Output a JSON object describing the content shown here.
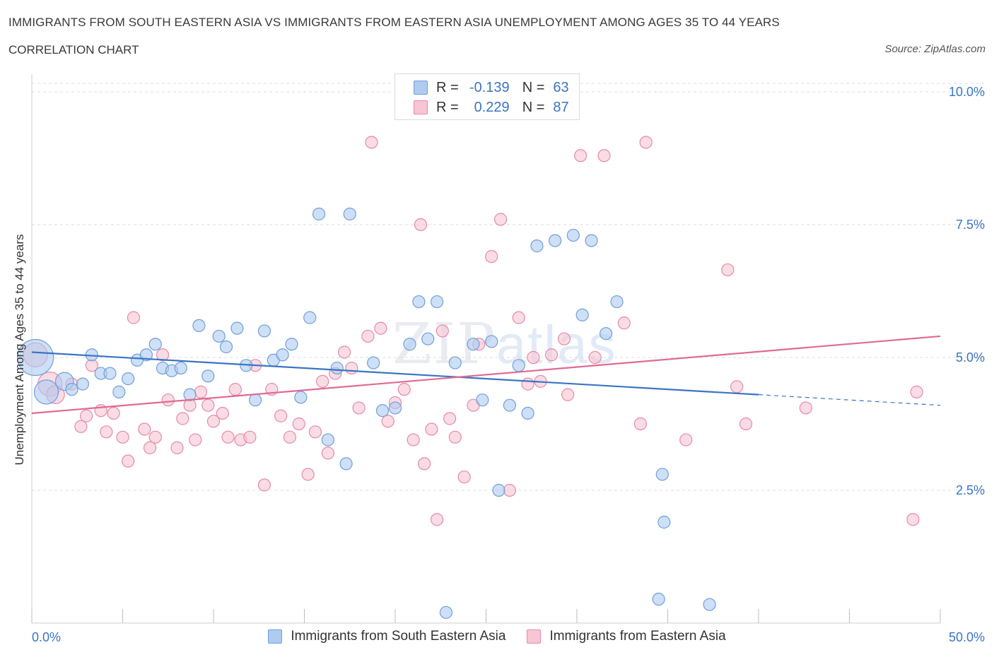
{
  "header": {
    "title": "IMMIGRANTS FROM SOUTH EASTERN ASIA VS IMMIGRANTS FROM EASTERN ASIA UNEMPLOYMENT AMONG AGES 35 TO 44 YEARS",
    "subtitle": "CORRELATION CHART",
    "source": "Source: ZipAtlas.com"
  },
  "watermark": {
    "zip": "ZIP",
    "atlas": "atlas"
  },
  "legend_stats": [
    {
      "r_label": "R =",
      "r_value": "-0.139",
      "n_label": "N =",
      "n_value": "63"
    },
    {
      "r_label": "R =",
      "r_value": "0.229",
      "n_label": "N =",
      "n_value": "87"
    }
  ],
  "colors": {
    "blue_fill": "#aecbf0",
    "blue_stroke": "#6f9fdc",
    "blue_line": "#3a75c4",
    "pink_fill": "#f7c5d3",
    "pink_stroke": "#e889a8",
    "pink_line": "#e06a93",
    "grid": "#dcdcdc",
    "axis_text": "#3a75c4"
  },
  "chart_data": {
    "type": "scatter",
    "title": "IMMIGRANTS FROM SOUTH EASTERN ASIA VS IMMIGRANTS FROM EASTERN ASIA UNEMPLOYMENT AMONG AGES 35 TO 44 YEARS",
    "xlabel": "",
    "ylabel": "Unemployment Among Ages 35 to 44 years",
    "xlim": [
      0,
      50
    ],
    "ylim": [
      0,
      10.2
    ],
    "x_tick_labels": [
      "0.0%",
      "50.0%"
    ],
    "y_ticks": [
      2.5,
      5.0,
      7.5,
      10.0
    ],
    "y_tick_labels": [
      "2.5%",
      "5.0%",
      "7.5%",
      "10.0%"
    ],
    "grid": true,
    "legend_placement": "bottom-center",
    "series": [
      {
        "name": "Immigrants from South Eastern Asia",
        "r": -0.139,
        "n": 63,
        "trend": {
          "x": [
            0,
            40.0
          ],
          "y": [
            5.1,
            4.3
          ],
          "dashed_to": [
            50,
            4.1
          ]
        },
        "points": [
          [
            0.2,
            5.0,
            3
          ],
          [
            0.8,
            4.35,
            2
          ],
          [
            1.8,
            4.55,
            1.5
          ],
          [
            2.2,
            4.4,
            1
          ],
          [
            2.8,
            4.5,
            1
          ],
          [
            3.3,
            5.05,
            1
          ],
          [
            3.8,
            4.7,
            1
          ],
          [
            4.3,
            4.7,
            1
          ],
          [
            4.8,
            4.35,
            1
          ],
          [
            5.3,
            4.6,
            1
          ],
          [
            5.8,
            4.95,
            1
          ],
          [
            6.3,
            5.05,
            1
          ],
          [
            6.8,
            5.25,
            1
          ],
          [
            7.2,
            4.8,
            1
          ],
          [
            7.7,
            4.75,
            1
          ],
          [
            8.2,
            4.8,
            1
          ],
          [
            8.7,
            4.3,
            1
          ],
          [
            9.2,
            5.6,
            1
          ],
          [
            9.7,
            4.65,
            1
          ],
          [
            10.3,
            5.4,
            1
          ],
          [
            10.7,
            5.2,
            1
          ],
          [
            11.3,
            5.55,
            1
          ],
          [
            11.8,
            4.85,
            1
          ],
          [
            12.3,
            4.2,
            1
          ],
          [
            12.8,
            5.5,
            1
          ],
          [
            13.3,
            4.95,
            1
          ],
          [
            13.8,
            5.05,
            1
          ],
          [
            14.3,
            5.25,
            1
          ],
          [
            14.8,
            4.25,
            1
          ],
          [
            15.3,
            5.75,
            1
          ],
          [
            15.8,
            7.7,
            1
          ],
          [
            16.3,
            3.45,
            1
          ],
          [
            16.8,
            4.8,
            1
          ],
          [
            17.3,
            3.0,
            1
          ],
          [
            17.5,
            7.7,
            1
          ],
          [
            18.8,
            4.9,
            1
          ],
          [
            19.3,
            4.0,
            1
          ],
          [
            20.0,
            4.05,
            1
          ],
          [
            20.8,
            5.25,
            1
          ],
          [
            21.3,
            6.05,
            1
          ],
          [
            21.8,
            5.35,
            1
          ],
          [
            22.3,
            6.05,
            1
          ],
          [
            22.8,
            0.2,
            1
          ],
          [
            23.3,
            4.9,
            1
          ],
          [
            24.3,
            5.25,
            1
          ],
          [
            25.3,
            5.3,
            1
          ],
          [
            24.8,
            4.2,
            1
          ],
          [
            25.7,
            2.5,
            1
          ],
          [
            26.3,
            4.1,
            1
          ],
          [
            26.8,
            4.85,
            1
          ],
          [
            27.3,
            3.95,
            1
          ],
          [
            27.8,
            7.1,
            1
          ],
          [
            28.8,
            7.2,
            1
          ],
          [
            29.8,
            7.3,
            1
          ],
          [
            30.3,
            5.8,
            1
          ],
          [
            30.8,
            7.2,
            1
          ],
          [
            31.6,
            5.45,
            1
          ],
          [
            32.2,
            6.05,
            1
          ],
          [
            34.7,
            2.8,
            1
          ],
          [
            34.8,
            1.9,
            1
          ],
          [
            34.5,
            0.45,
            1
          ],
          [
            37.3,
            0.35,
            1
          ]
        ]
      },
      {
        "name": "Immigrants from Eastern Asia",
        "r": 0.229,
        "n": 87,
        "trend": {
          "x": [
            0,
            50
          ],
          "y": [
            3.95,
            5.4
          ]
        },
        "points": [
          [
            0.2,
            5.05,
            2
          ],
          [
            1.0,
            4.5,
            2
          ],
          [
            1.3,
            4.3,
            1.5
          ],
          [
            2.2,
            4.5,
            1
          ],
          [
            2.7,
            3.7,
            1
          ],
          [
            3.0,
            3.9,
            1
          ],
          [
            3.3,
            4.85,
            1
          ],
          [
            3.8,
            4.0,
            1
          ],
          [
            4.1,
            3.6,
            1
          ],
          [
            4.5,
            3.95,
            1
          ],
          [
            5.0,
            3.5,
            1
          ],
          [
            5.3,
            3.05,
            1
          ],
          [
            5.6,
            5.75,
            1
          ],
          [
            6.2,
            3.65,
            1
          ],
          [
            6.5,
            3.3,
            1
          ],
          [
            6.8,
            3.5,
            1
          ],
          [
            7.2,
            5.05,
            1
          ],
          [
            7.5,
            4.2,
            1
          ],
          [
            8.0,
            3.3,
            1
          ],
          [
            8.3,
            3.85,
            1
          ],
          [
            8.7,
            4.1,
            1
          ],
          [
            9.0,
            3.45,
            1
          ],
          [
            9.3,
            4.35,
            1
          ],
          [
            9.7,
            4.1,
            1
          ],
          [
            10.0,
            3.8,
            1
          ],
          [
            10.5,
            3.95,
            1
          ],
          [
            10.8,
            3.5,
            1
          ],
          [
            11.2,
            4.4,
            1
          ],
          [
            11.5,
            3.45,
            1
          ],
          [
            12.0,
            3.5,
            1
          ],
          [
            12.3,
            4.85,
            1
          ],
          [
            12.8,
            2.6,
            1
          ],
          [
            13.2,
            4.4,
            1
          ],
          [
            13.7,
            3.9,
            1
          ],
          [
            14.2,
            3.5,
            1
          ],
          [
            14.7,
            3.75,
            1
          ],
          [
            15.2,
            2.8,
            1
          ],
          [
            15.6,
            3.6,
            1
          ],
          [
            16.0,
            4.55,
            1
          ],
          [
            16.3,
            3.2,
            1
          ],
          [
            16.7,
            4.7,
            1
          ],
          [
            17.2,
            5.1,
            1
          ],
          [
            17.6,
            4.8,
            1
          ],
          [
            18.0,
            4.05,
            1
          ],
          [
            18.5,
            5.4,
            1
          ],
          [
            18.7,
            9.05,
            1
          ],
          [
            19.2,
            5.55,
            1
          ],
          [
            19.6,
            3.8,
            1
          ],
          [
            20.0,
            4.15,
            1
          ],
          [
            20.5,
            4.4,
            1
          ],
          [
            21.0,
            3.45,
            1
          ],
          [
            21.4,
            7.5,
            1
          ],
          [
            21.6,
            3.0,
            1
          ],
          [
            22.0,
            3.65,
            1
          ],
          [
            22.3,
            1.95,
            1
          ],
          [
            22.6,
            5.5,
            1
          ],
          [
            23.0,
            3.85,
            1
          ],
          [
            23.3,
            3.5,
            1
          ],
          [
            23.8,
            2.75,
            1
          ],
          [
            24.3,
            4.1,
            1
          ],
          [
            24.6,
            5.25,
            1
          ],
          [
            25.3,
            6.9,
            1
          ],
          [
            25.8,
            7.6,
            1
          ],
          [
            26.3,
            2.5,
            1
          ],
          [
            26.8,
            5.75,
            1
          ],
          [
            27.3,
            4.5,
            1
          ],
          [
            27.6,
            5.0,
            1
          ],
          [
            28.0,
            4.55,
            1
          ],
          [
            28.6,
            5.05,
            1
          ],
          [
            29.3,
            5.35,
            1
          ],
          [
            29.5,
            4.3,
            1
          ],
          [
            30.2,
            8.8,
            1
          ],
          [
            31.0,
            5.0,
            1
          ],
          [
            31.5,
            8.8,
            1
          ],
          [
            32.6,
            5.65,
            1
          ],
          [
            33.5,
            3.75,
            1
          ],
          [
            33.8,
            9.05,
            1
          ],
          [
            36.0,
            3.45,
            1
          ],
          [
            38.3,
            6.65,
            1
          ],
          [
            38.8,
            4.45,
            1
          ],
          [
            39.3,
            3.75,
            1
          ],
          [
            42.6,
            4.05,
            1
          ],
          [
            48.5,
            1.95,
            1
          ],
          [
            48.7,
            4.35,
            1
          ]
        ]
      }
    ]
  },
  "bottom_legend": {
    "blue_label": "Immigrants from South Eastern Asia",
    "pink_label": "Immigrants from Eastern Asia"
  }
}
